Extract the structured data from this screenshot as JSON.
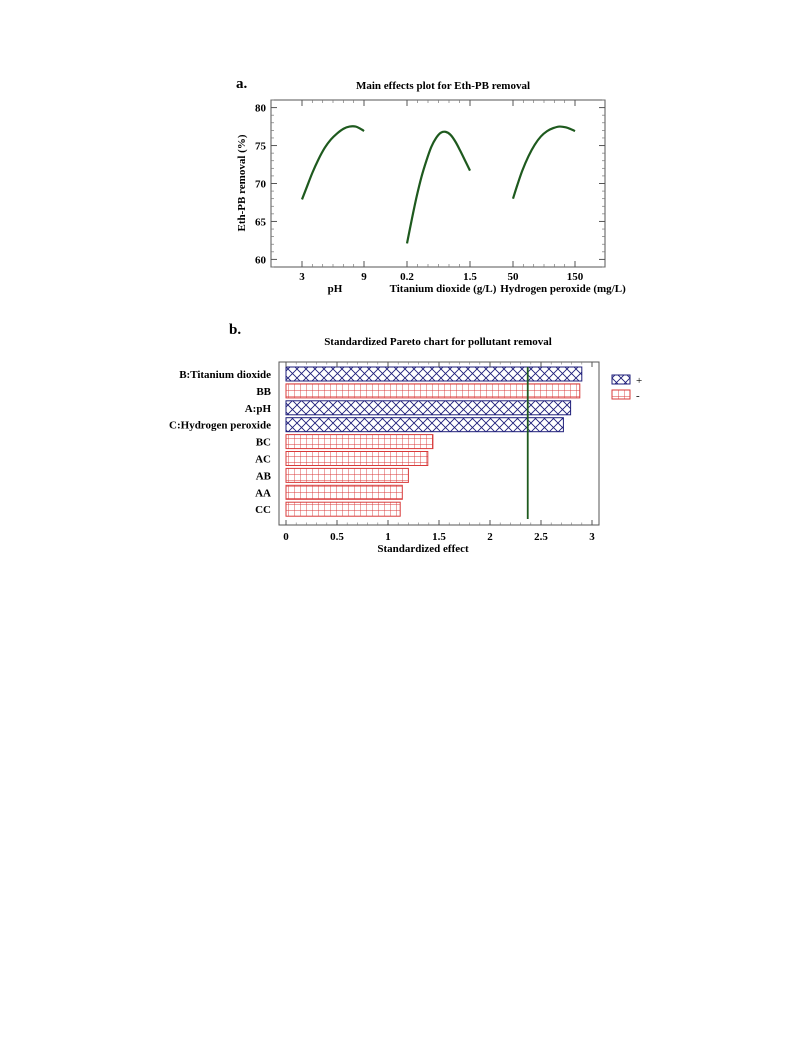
{
  "chart_data": [
    {
      "type": "line",
      "panel_label": "a.",
      "title": "Main effects plot for Eth-PB removal",
      "ylabel": "Eth-PB removal (%)",
      "ylim": [
        59,
        81
      ],
      "yticks": [
        60,
        65,
        70,
        75,
        80
      ],
      "grid": false,
      "colors": {
        "line": "#1e5a1e"
      },
      "factors": [
        {
          "name": "pH",
          "low_label": "3",
          "high_label": "9",
          "x": [
            3,
            3.4,
            4,
            4.6,
            5.2,
            5.8,
            6.4,
            7,
            7.6,
            8.2,
            8.8,
            9
          ],
          "y": [
            67.9,
            69.3,
            71.4,
            73.2,
            74.7,
            75.8,
            76.6,
            77.2,
            77.5,
            77.5,
            77.1,
            76.9
          ]
        },
        {
          "name": "Titanium dioxide (g/L)",
          "low_label": "0.2",
          "high_label": "1.5",
          "x": [
            0.2,
            0.3,
            0.4,
            0.5,
            0.6,
            0.7,
            0.8,
            0.9,
            1.0,
            1.1,
            1.2,
            1.3,
            1.4,
            1.5
          ],
          "y": [
            62.1,
            65.3,
            68.3,
            70.9,
            73.0,
            74.8,
            76.0,
            76.7,
            76.8,
            76.4,
            75.5,
            74.3,
            73.0,
            71.7
          ]
        },
        {
          "name": "Hydrogen peroxide (mg/L)",
          "low_label": "50",
          "high_label": "150",
          "x": [
            50,
            57,
            65,
            75,
            85,
            95,
            105,
            115,
            125,
            135,
            145,
            150
          ],
          "y": [
            68.0,
            69.8,
            71.7,
            73.6,
            75.1,
            76.2,
            76.9,
            77.3,
            77.5,
            77.4,
            77.1,
            76.9
          ]
        }
      ]
    },
    {
      "type": "bar",
      "orientation": "horizontal",
      "panel_label": "b.",
      "title": "Standardized Pareto chart for pollutant removal",
      "xlabel": "Standardized effect",
      "xlim": [
        0,
        3.05
      ],
      "xticks": [
        "0",
        "0.5",
        "1",
        "1.5",
        "2",
        "2.5",
        "3"
      ],
      "reference_line": 2.37,
      "categories": [
        "B:Titanium dioxide",
        "BB",
        "A:pH",
        "C:Hydrogen peroxide",
        "BC",
        "AC",
        "AB",
        "AA",
        "CC"
      ],
      "values": [
        2.9,
        2.88,
        2.79,
        2.72,
        1.44,
        1.39,
        1.2,
        1.14,
        1.12
      ],
      "signs": [
        "+",
        "-",
        "+",
        "+",
        "-",
        "-",
        "-",
        "-",
        "-"
      ],
      "legend": [
        {
          "label": "+",
          "color": "#1e1e7a"
        },
        {
          "label": "-",
          "color": "#d83a3a"
        }
      ],
      "legend_position": "right",
      "colors": {
        "reference_line": "#1e5a1e"
      }
    }
  ]
}
